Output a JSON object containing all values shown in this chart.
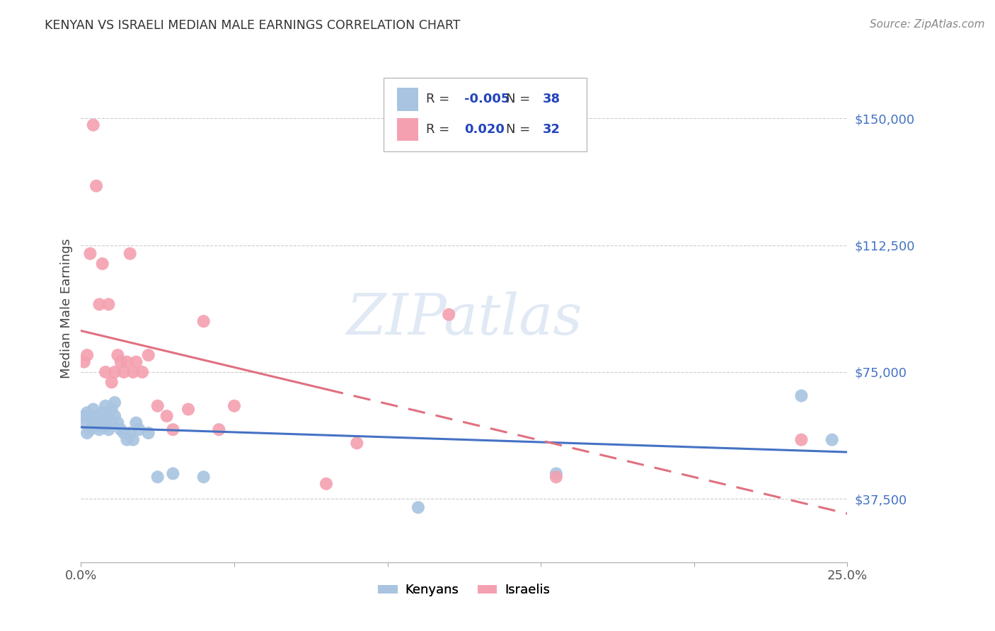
{
  "title": "KENYAN VS ISRAELI MEDIAN MALE EARNINGS CORRELATION CHART",
  "source": "Source: ZipAtlas.com",
  "ylabel": "Median Male Earnings",
  "watermark": "ZIPatlas",
  "xlim": [
    0.0,
    0.25
  ],
  "ylim": [
    18750,
    168750
  ],
  "yticks": [
    37500,
    75000,
    112500,
    150000
  ],
  "ytick_labels": [
    "$37,500",
    "$75,000",
    "$112,500",
    "$150,000"
  ],
  "xticks": [
    0.0,
    0.05,
    0.1,
    0.15,
    0.2,
    0.25
  ],
  "xtick_labels": [
    "0.0%",
    "",
    "",
    "",
    "",
    "25.0%"
  ],
  "kenyan_r": -0.005,
  "kenyan_n": 38,
  "israeli_r": 0.02,
  "israeli_n": 32,
  "kenyan_color": "#a8c4e0",
  "israeli_color": "#f4a0b0",
  "kenyan_line_color": "#4472c4",
  "israeli_line_color": "#e07080",
  "legend_color": "#2244bb",
  "title_color": "#333333",
  "ylabel_color": "#444444",
  "ytick_color": "#4472c4",
  "xtick_color": "#555555",
  "grid_color": "#cccccc",
  "background_color": "#ffffff",
  "kenyan_x": [
    0.001,
    0.001,
    0.002,
    0.002,
    0.003,
    0.003,
    0.004,
    0.004,
    0.005,
    0.005,
    0.006,
    0.006,
    0.007,
    0.007,
    0.008,
    0.008,
    0.009,
    0.009,
    0.01,
    0.01,
    0.011,
    0.011,
    0.012,
    0.013,
    0.014,
    0.015,
    0.016,
    0.017,
    0.018,
    0.019,
    0.022,
    0.025,
    0.03,
    0.04,
    0.11,
    0.155,
    0.235,
    0.245
  ],
  "kenyan_y": [
    60000,
    62000,
    57000,
    63000,
    58000,
    62000,
    60000,
    64000,
    59000,
    62000,
    58000,
    61000,
    60000,
    63000,
    59000,
    65000,
    58000,
    62000,
    60000,
    64000,
    62000,
    66000,
    60000,
    58000,
    57000,
    55000,
    57000,
    55000,
    60000,
    58000,
    57000,
    44000,
    45000,
    44000,
    35000,
    45000,
    68000,
    55000
  ],
  "israeli_x": [
    0.001,
    0.002,
    0.003,
    0.004,
    0.005,
    0.006,
    0.007,
    0.008,
    0.009,
    0.01,
    0.011,
    0.012,
    0.013,
    0.014,
    0.015,
    0.016,
    0.017,
    0.018,
    0.02,
    0.022,
    0.025,
    0.028,
    0.03,
    0.035,
    0.04,
    0.045,
    0.05,
    0.08,
    0.09,
    0.12,
    0.155,
    0.235
  ],
  "israeli_y": [
    78000,
    80000,
    110000,
    148000,
    130000,
    95000,
    107000,
    75000,
    95000,
    72000,
    75000,
    80000,
    78000,
    75000,
    78000,
    110000,
    75000,
    78000,
    75000,
    80000,
    65000,
    62000,
    58000,
    64000,
    90000,
    58000,
    65000,
    42000,
    54000,
    92000,
    44000,
    55000
  ]
}
